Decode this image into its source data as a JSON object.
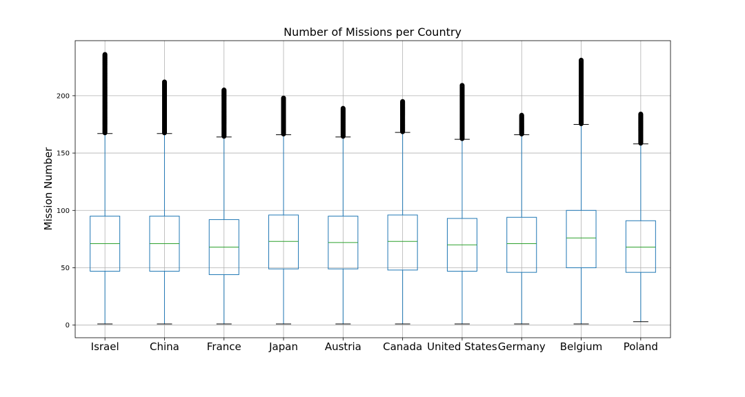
{
  "chart_data": {
    "type": "box",
    "title": "Number of Missions per Country",
    "xlabel": "",
    "ylabel": "Mission Number",
    "categories": [
      "Israel",
      "China",
      "France",
      "Japan",
      "Austria",
      "Canada",
      "United States",
      "Germany",
      "Belgium",
      "Poland"
    ],
    "ylim": [
      -11,
      248
    ],
    "yticks": [
      0,
      50,
      100,
      150,
      200
    ],
    "grid": true,
    "legend": "none",
    "colors": {
      "box": "#1f77b4",
      "median": "#2ca02c",
      "whisker": "#1f77b4",
      "cap": "#000000",
      "flier": "#000000"
    },
    "boxes": [
      {
        "category": "Israel",
        "whislo": 1,
        "q1": 47,
        "med": 71,
        "q3": 95,
        "whishi": 167,
        "flier_max": 236
      },
      {
        "category": "China",
        "whislo": 1,
        "q1": 47,
        "med": 71,
        "q3": 95,
        "whishi": 167,
        "flier_max": 212
      },
      {
        "category": "France",
        "whislo": 1,
        "q1": 44,
        "med": 68,
        "q3": 92,
        "whishi": 164,
        "flier_max": 205
      },
      {
        "category": "Japan",
        "whislo": 1,
        "q1": 49,
        "med": 73,
        "q3": 96,
        "whishi": 166,
        "flier_max": 198
      },
      {
        "category": "Austria",
        "whislo": 1,
        "q1": 49,
        "med": 72,
        "q3": 95,
        "whishi": 164,
        "flier_max": 189
      },
      {
        "category": "Canada",
        "whislo": 1,
        "q1": 48,
        "med": 73,
        "q3": 96,
        "whishi": 168,
        "flier_max": 195
      },
      {
        "category": "United States",
        "whislo": 1,
        "q1": 47,
        "med": 70,
        "q3": 93,
        "whishi": 162,
        "flier_max": 209
      },
      {
        "category": "Germany",
        "whislo": 1,
        "q1": 46,
        "med": 71,
        "q3": 94,
        "whishi": 166,
        "flier_max": 183
      },
      {
        "category": "Belgium",
        "whislo": 1,
        "q1": 50,
        "med": 76,
        "q3": 100,
        "whishi": 175,
        "flier_max": 231
      },
      {
        "category": "Poland",
        "whislo": 3,
        "q1": 46,
        "med": 68,
        "q3": 91,
        "whishi": 158,
        "flier_max": 184
      }
    ]
  }
}
